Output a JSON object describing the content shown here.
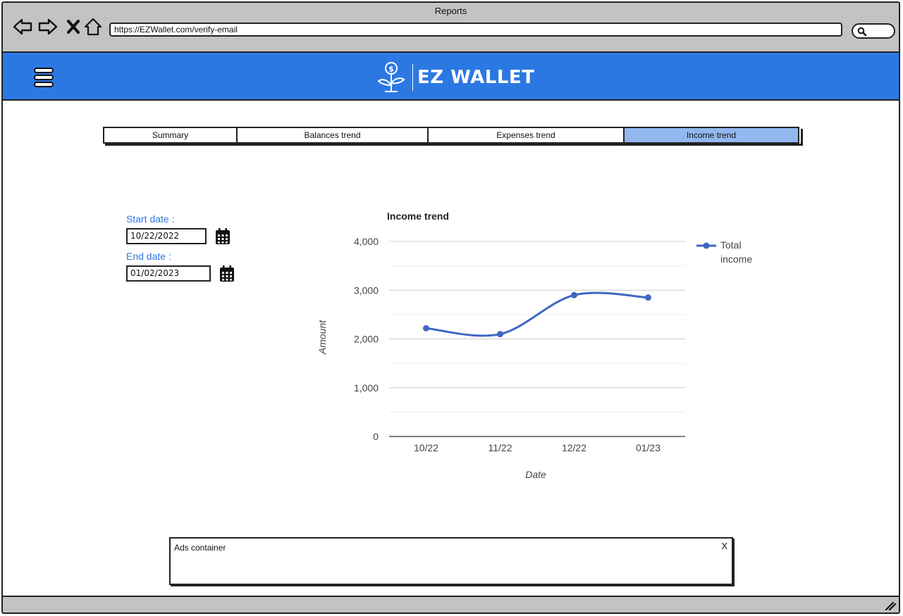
{
  "window": {
    "title": "Reports"
  },
  "browser": {
    "url": "https://EZWallet.com/verify-email"
  },
  "header": {
    "brand": "EZ WALLET"
  },
  "tabs": [
    {
      "label": "Summary"
    },
    {
      "label": "Balances trend"
    },
    {
      "label": "Expenses trend"
    },
    {
      "label": "Income trend",
      "active": true
    }
  ],
  "filters": {
    "start_label": "Start date :",
    "start_value": "10/22/2022",
    "end_label": "End date :",
    "end_value": "01/02/2023"
  },
  "chart_data": {
    "type": "line",
    "title": "Income trend",
    "xlabel": "Date",
    "ylabel": "Amount",
    "categories": [
      "10/22",
      "11/22",
      "12/22",
      "01/23"
    ],
    "series": [
      {
        "name": "Total income",
        "values": [
          2220,
          2100,
          2900,
          2850
        ],
        "color": "#3f67c2"
      }
    ],
    "ylim": [
      0,
      4000
    ],
    "yticks": [
      0,
      1000,
      2000,
      3000,
      4000
    ],
    "ytick_labels": [
      "0",
      "1,000",
      "2,000",
      "3,000",
      "4,000"
    ],
    "grid": true,
    "smooth": true,
    "legend_position": "right"
  },
  "ads": {
    "label": "Ads container",
    "close": "X"
  },
  "colors": {
    "accent": "#2c78e3",
    "active_tab": "#93b8ef",
    "chrome": "#c3c3c3"
  }
}
